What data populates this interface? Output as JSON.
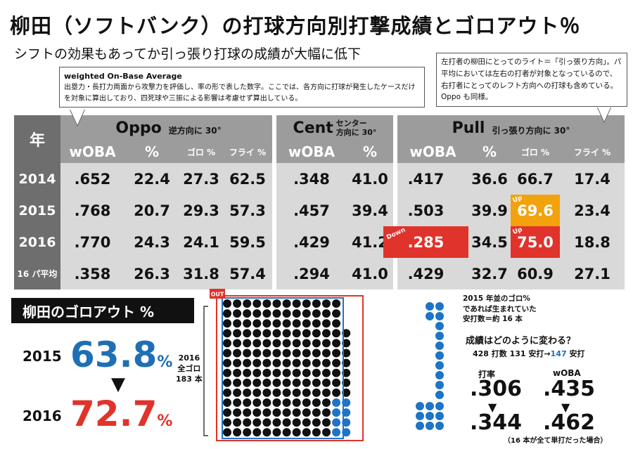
{
  "title": "柳田（ソフトバンク）の打球方向別打撃成績とゴロアウト％",
  "subtitle": "シフトの効果もあってか引っ張り打球の成績が大幅に低下",
  "callout_woba": {
    "heading": "weighted On-Base Average",
    "body": "出塁力・長打力両面から攻撃力を評価し、率の形で表した数字。ここでは、各方向に打球が発生したケースだけを対象に算出しており、四死球や三振による影響は考慮せず算出している。"
  },
  "callout_pull": "左打者の柳田にとってのライト＝「引っ張り方向」。パ平均においては左右の打者が対象となっているので、右打者にとってのレフト方向への打球も含めている。Oppo も同様。",
  "table": {
    "year_header": "年",
    "oppo": {
      "name": "Oppo",
      "note": "逆方向に 30°"
    },
    "cent": {
      "name": "Cent",
      "note_line1": "センター",
      "note_line2": "方向に 30°"
    },
    "pull": {
      "name": "Pull",
      "note": "引っ張り方向に 30°"
    },
    "col_headers": {
      "woba": "wOBA",
      "pct": "%",
      "goro": "ゴロ %",
      "fly": "フライ %"
    },
    "rows": [
      {
        "year": "2014",
        "oppo": [
          ".652",
          "22.4",
          "27.3",
          "62.5"
        ],
        "cent": [
          ".348",
          "41.0"
        ],
        "pull": [
          ".417",
          "36.6",
          "66.7",
          "17.4"
        ]
      },
      {
        "year": "2015",
        "oppo": [
          ".768",
          "20.7",
          "29.3",
          "57.3"
        ],
        "cent": [
          ".457",
          "39.4"
        ],
        "pull": [
          ".503",
          "39.9",
          "69.6",
          "23.4"
        ]
      },
      {
        "year": "2016",
        "oppo": [
          ".770",
          "24.3",
          "24.1",
          "59.5"
        ],
        "cent": [
          ".429",
          "41.2"
        ],
        "pull": [
          ".285",
          "34.5",
          "75.0",
          "18.8"
        ]
      },
      {
        "year": "16 パ平均",
        "oppo": [
          ".358",
          "26.3",
          "31.8",
          "57.4"
        ],
        "cent": [
          ".294",
          "41.0"
        ],
        "pull": [
          ".429",
          "32.7",
          "60.9",
          "27.1"
        ]
      }
    ],
    "badges": {
      "up": "Up",
      "down": "Down"
    }
  },
  "goro_out": {
    "title": "柳田のゴロアウト %",
    "y2015": "2015",
    "v2015": "63.8",
    "y2016": "2016",
    "v2016": "72.7",
    "unit": "%",
    "arrow": "▼"
  },
  "dot_chart": {
    "out_label": "OUT",
    "side_label": [
      "2016",
      "全ゴロ",
      "183 本"
    ],
    "total_goro": 183,
    "outs_2016_share": 72.7,
    "outs_2015_share": 63.8,
    "would_be_hits": 16,
    "note": [
      "2015 年並のゴロ%",
      "であれば生まれていた",
      "安打数＝約 16 本"
    ]
  },
  "projection": {
    "question": "成績はどのように変わる？",
    "line_a": "428 打数 131 安打→",
    "line_b": "147",
    "line_c": " 安打",
    "avg_label": "打率",
    "avg_from": ".306",
    "avg_to": ".344",
    "woba_label": "wOBA",
    "woba_from": ".435",
    "woba_to": ".462",
    "arrow": "▼",
    "footnote": "（16 本が全て単打だった場合）"
  },
  "colors": {
    "blue": "#1f6fb5",
    "red": "#e0332b",
    "orange": "#f2a20c",
    "dark_gray": "#6e6e6e",
    "mid_gray": "#9c9c9c",
    "light_gray": "#d9d9d9",
    "dot_black": "#111111",
    "dot_blue": "#1e74c6"
  },
  "chart_data": {
    "type": "table",
    "title": "柳田（ソフトバンク）の打球方向別打撃成績とゴロアウト％",
    "columns": [
      "年",
      "Oppo wOBA",
      "Oppo %",
      "Oppo ゴロ %",
      "Oppo フライ %",
      "Cent wOBA",
      "Cent %",
      "Pull wOBA",
      "Pull %",
      "Pull ゴロ %",
      "Pull フライ %"
    ],
    "rows": [
      [
        "2014",
        0.652,
        22.4,
        27.3,
        62.5,
        0.348,
        41.0,
        0.417,
        36.6,
        66.7,
        17.4
      ],
      [
        "2015",
        0.768,
        20.7,
        29.3,
        57.3,
        0.457,
        39.4,
        0.503,
        39.9,
        69.6,
        23.4
      ],
      [
        "2016",
        0.77,
        24.3,
        24.1,
        59.5,
        0.429,
        41.2,
        0.285,
        34.5,
        75.0,
        18.8
      ],
      [
        "16 パ平均",
        0.358,
        26.3,
        31.8,
        57.4,
        0.294,
        41.0,
        0.429,
        32.7,
        60.9,
        27.1
      ]
    ],
    "goro_out_pct": {
      "2015": 63.8,
      "2016": 72.7
    }
  }
}
